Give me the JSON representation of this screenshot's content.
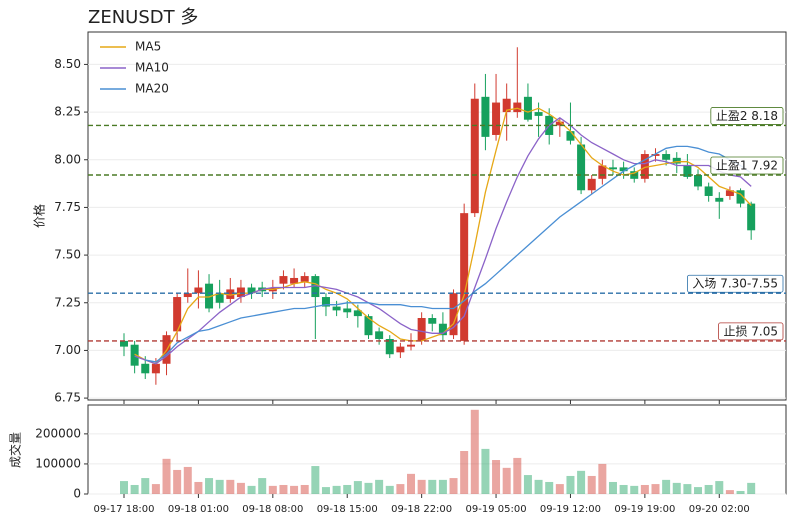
{
  "chart_data": [
    {
      "type": "candlestick",
      "title": "ZENUSDT  多",
      "y_label": "价格",
      "up_color": "#d13a2f",
      "down_color": "#16a05d",
      "open": [
        7.05,
        7.03,
        6.93,
        6.88,
        6.93,
        7.1,
        7.28,
        7.3,
        7.35,
        7.3,
        7.27,
        7.28,
        7.33,
        7.33,
        7.31,
        7.35,
        7.35,
        7.36,
        7.39,
        7.28,
        7.23,
        7.22,
        7.21,
        7.18,
        7.1,
        7.06,
        6.99,
        7.02,
        7.05,
        7.17,
        7.14,
        7.08,
        7.05,
        7.72,
        8.33,
        8.13,
        8.25,
        8.25,
        8.33,
        8.25,
        8.23,
        8.18,
        8.15,
        8.08,
        7.84,
        7.9,
        7.96,
        7.96,
        7.94,
        7.9,
        8.02,
        8.03,
        8.01,
        7.97,
        7.92,
        7.86,
        7.8,
        7.81,
        7.84,
        7.77
      ],
      "high": [
        7.09,
        7.05,
        6.97,
        6.96,
        7.1,
        7.3,
        7.43,
        7.42,
        7.4,
        7.37,
        7.38,
        7.37,
        7.35,
        7.36,
        7.37,
        7.42,
        7.43,
        7.41,
        7.4,
        7.3,
        7.26,
        7.26,
        7.24,
        7.19,
        7.12,
        7.08,
        7.04,
        7.09,
        7.2,
        7.19,
        7.2,
        7.32,
        7.77,
        8.4,
        8.45,
        8.45,
        8.4,
        8.59,
        8.4,
        8.3,
        8.27,
        8.22,
        8.3,
        8.12,
        7.92,
        8.0,
        8.0,
        7.99,
        7.96,
        8.05,
        8.06,
        8.05,
        8.04,
        8.03,
        7.95,
        7.88,
        7.83,
        7.86,
        7.85,
        7.78
      ],
      "low": [
        6.97,
        6.88,
        6.85,
        6.82,
        6.87,
        7.05,
        7.25,
        7.22,
        7.2,
        7.22,
        7.25,
        7.25,
        7.27,
        7.28,
        7.27,
        7.32,
        7.33,
        7.33,
        7.06,
        7.18,
        7.18,
        7.17,
        7.12,
        7.06,
        7.03,
        6.96,
        6.96,
        7.0,
        7.03,
        7.1,
        7.05,
        7.06,
        7.03,
        7.7,
        8.05,
        8.1,
        8.1,
        8.22,
        8.2,
        8.12,
        8.08,
        8.12,
        8.08,
        7.82,
        7.82,
        7.87,
        7.92,
        7.9,
        7.88,
        7.88,
        7.99,
        7.97,
        7.93,
        7.9,
        7.84,
        7.78,
        7.69,
        7.79,
        7.75,
        7.58
      ],
      "close": [
        7.02,
        6.92,
        6.88,
        6.93,
        7.08,
        7.28,
        7.3,
        7.33,
        7.22,
        7.25,
        7.32,
        7.33,
        7.3,
        7.31,
        7.33,
        7.39,
        7.38,
        7.39,
        7.28,
        7.23,
        7.21,
        7.2,
        7.18,
        7.08,
        7.06,
        6.98,
        7.02,
        7.03,
        7.17,
        7.14,
        7.08,
        7.3,
        7.72,
        8.32,
        8.12,
        8.3,
        8.32,
        8.3,
        8.21,
        8.23,
        8.13,
        8.2,
        8.1,
        7.84,
        7.9,
        7.97,
        7.95,
        7.94,
        7.9,
        8.03,
        8.03,
        8.0,
        7.98,
        7.91,
        7.86,
        7.81,
        7.78,
        7.84,
        7.77,
        7.63
      ],
      "series": [
        {
          "name": "MA5",
          "color": "#e6a817",
          "values": [
            null,
            6.98,
            6.95,
            6.93,
            7.0,
            7.1,
            7.22,
            7.28,
            7.28,
            7.3,
            7.29,
            7.3,
            7.3,
            7.32,
            7.32,
            7.33,
            7.35,
            7.36,
            7.35,
            7.32,
            7.3,
            7.27,
            7.22,
            7.17,
            7.13,
            7.1,
            7.06,
            7.05,
            7.05,
            7.07,
            7.09,
            7.14,
            7.29,
            7.55,
            7.83,
            8.05,
            8.26,
            8.27,
            8.25,
            8.27,
            8.24,
            8.2,
            8.15,
            8.08,
            8.01,
            7.97,
            7.94,
            7.92,
            7.93,
            7.96,
            7.97,
            7.98,
            7.99,
            7.99,
            7.96,
            7.91,
            7.86,
            7.84,
            7.82,
            7.76
          ]
        },
        {
          "name": "MA10",
          "color": "#8b63c8",
          "values": [
            null,
            6.97,
            6.95,
            6.93,
            6.97,
            7.02,
            7.06,
            7.1,
            7.15,
            7.2,
            7.24,
            7.28,
            7.3,
            7.32,
            7.33,
            7.33,
            7.33,
            7.33,
            7.34,
            7.33,
            7.32,
            7.3,
            7.28,
            7.25,
            7.22,
            7.18,
            7.14,
            7.11,
            7.1,
            7.09,
            7.09,
            7.12,
            7.18,
            7.33,
            7.48,
            7.64,
            7.78,
            7.91,
            8.02,
            8.11,
            8.18,
            8.22,
            8.18,
            8.13,
            8.09,
            8.06,
            8.03,
            8.0,
            7.98,
            7.98,
            8.0,
            7.99,
            7.97,
            7.97,
            7.97,
            7.97,
            7.94,
            7.92,
            7.91,
            7.86
          ]
        },
        {
          "name": "MA20",
          "color": "#4a8fd4",
          "values": [
            null,
            null,
            6.95,
            6.94,
            6.98,
            7.04,
            7.07,
            7.1,
            7.11,
            7.13,
            7.15,
            7.17,
            7.18,
            7.19,
            7.2,
            7.21,
            7.22,
            7.22,
            7.23,
            7.24,
            7.24,
            7.25,
            7.25,
            7.25,
            7.24,
            7.24,
            7.24,
            7.23,
            7.23,
            7.22,
            7.22,
            7.22,
            7.26,
            7.31,
            7.35,
            7.4,
            7.45,
            7.5,
            7.55,
            7.6,
            7.65,
            7.7,
            7.74,
            7.78,
            7.82,
            7.86,
            7.9,
            7.94,
            7.97,
            8.0,
            8.03,
            8.06,
            8.07,
            8.07,
            8.06,
            8.04,
            8.03,
            8.0,
            7.97,
            7.93
          ]
        }
      ],
      "levels": [
        {
          "value": 8.18,
          "label": "止盈2 8.18",
          "color": "#4a7a25"
        },
        {
          "value": 7.92,
          "label": "止盈1 7.92",
          "color": "#4a7a25"
        },
        {
          "value": 7.3,
          "label": "入场 7.30-7.55",
          "color": "#2a6fa8"
        },
        {
          "value": 7.05,
          "label": "止损 7.05",
          "color": "#b03a35"
        }
      ],
      "ylim": [
        6.74,
        8.67
      ],
      "yticks": [
        6.75,
        {
          "value": 7.0,
          "label": "7.00"
        },
        7.25,
        {
          "value": 7.5,
          "label": "7.50"
        },
        7.75,
        {
          "value": 8.0,
          "label": "8.00"
        },
        8.25,
        {
          "value": 8.5,
          "label": "8.50"
        }
      ],
      "grid": true,
      "legend": "upper left"
    },
    {
      "type": "volume",
      "y_label": "成交量",
      "categories": [
        "09-17 18:00",
        null,
        null,
        null,
        null,
        null,
        null,
        "09-18 01:00",
        null,
        null,
        null,
        null,
        null,
        null,
        "09-18 08:00",
        null,
        null,
        null,
        null,
        null,
        null,
        "09-18 15:00",
        null,
        null,
        null,
        null,
        null,
        null,
        "09-18 22:00",
        null,
        null,
        null,
        null,
        null,
        null,
        "09-19 05:00",
        null,
        null,
        null,
        null,
        null,
        null,
        "09-19 12:00",
        null,
        null,
        null,
        null,
        null,
        null,
        "09-19 19:00",
        null,
        null,
        null,
        null,
        null,
        null,
        "09-20 02:00",
        null,
        null,
        null
      ],
      "values": [
        43000,
        30000,
        53000,
        33000,
        117000,
        80000,
        90000,
        40000,
        53000,
        47000,
        47000,
        37000,
        27000,
        53000,
        27000,
        30000,
        27000,
        30000,
        93000,
        23000,
        27000,
        30000,
        43000,
        37000,
        47000,
        27000,
        33000,
        67000,
        47000,
        47000,
        47000,
        53000,
        143000,
        280000,
        150000,
        113000,
        87000,
        120000,
        63000,
        47000,
        40000,
        33000,
        60000,
        77000,
        60000,
        100000,
        40000,
        30000,
        27000,
        30000,
        33000,
        47000,
        37000,
        33000,
        23000,
        30000,
        43000,
        13000,
        10000,
        37000
      ],
      "ylim": [
        0,
        296000
      ],
      "yticks": [
        0,
        100000,
        200000
      ],
      "grid": true
    }
  ]
}
